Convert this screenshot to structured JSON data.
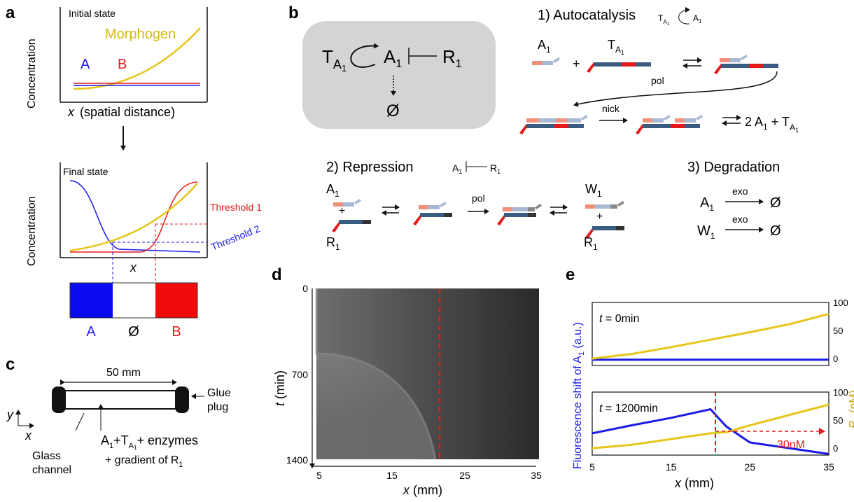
{
  "panel_letters": [
    "a",
    "b",
    "c",
    "d",
    "e"
  ],
  "colors": {
    "morphogen": "#e6c619",
    "A": "#1a1ae6",
    "B": "#e61a1a",
    "box": "#d4d4d4",
    "strand_light_red": "#f0907a",
    "strand_light_blue": "#a8b9d4",
    "strand_dark": "#3a5c80"
  },
  "panel_a": {
    "initial_title": "Initial state",
    "final_title": "Final state",
    "ylabel": "Concentration",
    "morphogen": "Morphogen",
    "A": "A",
    "B": "B",
    "x_prefix": "x",
    "x_suffix": "(spatial distance)",
    "x_only": "x",
    "threshold1": "Threshold 1",
    "threshold2": "Threshold 2",
    "bar_A": "A",
    "bar_empty": "Ø",
    "bar_B": "B"
  },
  "panel_b": {
    "net_T": "T",
    "net_T_sub1": "A",
    "net_T_sub2": "1",
    "net_A": "A",
    "net_A_sub": "1",
    "net_R": "R",
    "net_R_sub": "1",
    "net_empty": "Ø",
    "autocatalysis_title": "1) Autocatalysis",
    "repression_title": "2) Repression",
    "degradation_title": "3) Degradation",
    "pol": "pol",
    "nick": "nick",
    "exo": "exo",
    "plus": "+",
    "two": "2",
    "W": "W",
    "sub1": "1",
    "empty": "Ø"
  },
  "panel_c": {
    "length": "50 mm",
    "glue": "Glue",
    "plug": "plug",
    "glass": "Glass",
    "channel": "channel",
    "axis_y": "y",
    "axis_x": "x",
    "content1_enzymes": "+ enzymes",
    "content2": "+ gradient of R",
    "content2_sub": "1"
  },
  "panel_d": {
    "ylabel_var": "t",
    "ylabel_unit": "(min)",
    "xlabel_var": "x",
    "xlabel_unit": "(mm)",
    "yticks": [
      "0",
      "700",
      "1400"
    ],
    "xticks": [
      "5",
      "15",
      "25",
      "35"
    ]
  },
  "panel_e": {
    "top_label_var": "t",
    "top_label_val": "= 0min",
    "bottom_label_var": "t",
    "bottom_label_val": "= 1200min",
    "annotation": "30nM",
    "left_ylabel": "Fluorescence shift of A",
    "left_ylabel_sub": "1",
    "left_ylabel_unit": "(a.u.)",
    "right_ylabel": "R",
    "right_ylabel_sub": "1",
    "right_ylabel_unit": "(nM)",
    "xlabel_var": "x",
    "xlabel_unit": "(mm)",
    "xticks": [
      "5",
      "15",
      "25",
      "35"
    ],
    "right_ticks": [
      "100",
      "50",
      "0"
    ]
  },
  "chart_data": [
    {
      "type": "line",
      "title": "t = 0min",
      "x": [
        5,
        10,
        15,
        20,
        25,
        30,
        35
      ],
      "series": [
        {
          "name": "Fluorescence shift of A1",
          "values": [
            0,
            0,
            0,
            0,
            0,
            0,
            0
          ]
        },
        {
          "name": "R1",
          "values": [
            2,
            10,
            22,
            35,
            48,
            62,
            80
          ]
        }
      ],
      "xlabel": "x (mm)",
      "ylabel": "R1 (nM)",
      "xlim": [
        5,
        35
      ],
      "ylim": [
        -10,
        100
      ]
    },
    {
      "type": "line",
      "title": "t = 1200min",
      "x": [
        5,
        10,
        15,
        20,
        22,
        25,
        30,
        35
      ],
      "series": [
        {
          "name": "Fluorescence shift of A1",
          "values": [
            28,
            42,
            55,
            70,
            40,
            12,
            2,
            -8
          ]
        },
        {
          "name": "R1",
          "values": [
            2,
            8,
            18,
            28,
            30,
            42,
            60,
            78
          ]
        }
      ],
      "xlabel": "x (mm)",
      "ylabel": "R1 (nM)",
      "xlim": [
        5,
        35
      ],
      "ylim": [
        -10,
        100
      ]
    }
  ]
}
